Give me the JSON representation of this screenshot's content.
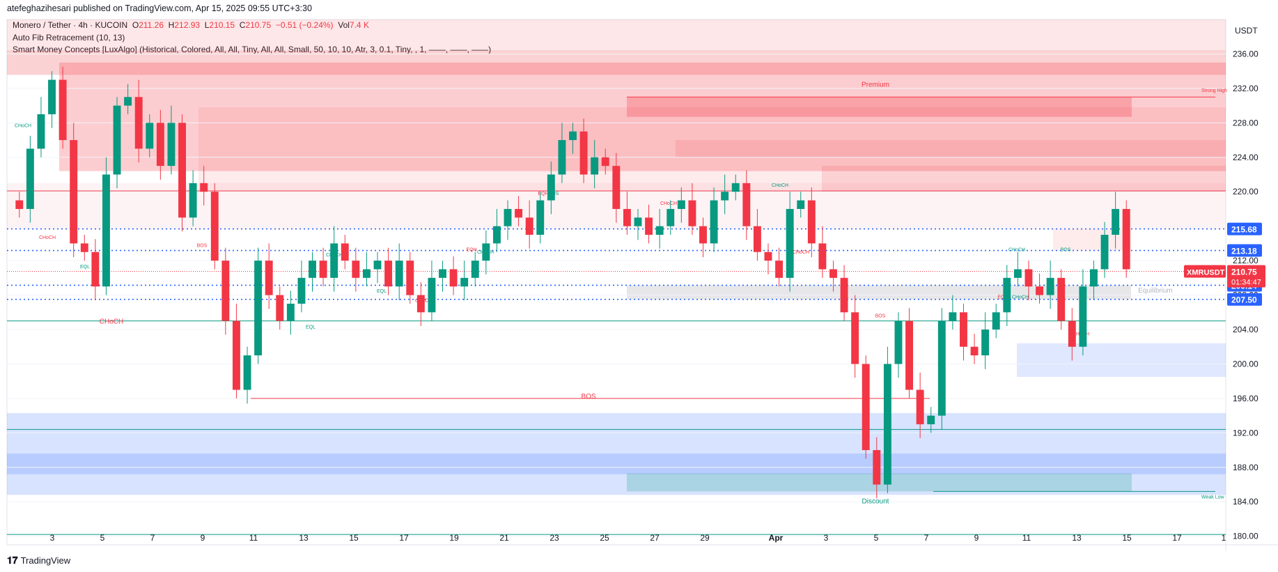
{
  "header": {
    "published": "atefeghazihesari published on TradingView.com, Apr 15, 2025 09:55 UTC+3:30",
    "symbol_line": "Monero / Tether · 4h · KUCOIN",
    "o_label": "O",
    "o_value": "211.26",
    "h_label": "H",
    "h_value": "212.93",
    "l_label": "L",
    "l_value": "210.15",
    "c_label": "C",
    "c_value": "210.75",
    "change": "−0.51 (−0.24%)",
    "vol_label": "Vol",
    "vol_value": "7.4 K",
    "indicator1": "Auto Fib Retracement (10, 13)",
    "indicator2": "Smart Money Concepts [LuxAlgo] (Historical, Colored, All, All, Tiny, All, All, Small, 50, 10, 10, Atr, 3, 0.1, Tiny, , 1, ——, ——, ——)"
  },
  "footer": {
    "brand": "TradingView"
  },
  "colors": {
    "up": "#089981",
    "down": "#f23645",
    "premium": "#f23645",
    "discount": "#2962ff",
    "fib": "#2962ff"
  },
  "chart_data": {
    "type": "candlestick",
    "currency": "USDT",
    "ylim": [
      179,
      240
    ],
    "y_ticks": [
      180,
      184,
      188,
      192,
      196,
      200,
      204,
      208,
      212,
      216,
      220,
      224,
      228,
      232,
      236
    ],
    "y_tick_labels": [
      "180.00",
      "184.00",
      "188.00",
      "192.00",
      "196.00",
      "200.00",
      "204.00",
      "208.00",
      "212.00",
      "216.00",
      "220.00",
      "224.00",
      "228.00",
      "232.00",
      "236.00"
    ],
    "x_ticks": [
      "3",
      "5",
      "7",
      "9",
      "11",
      "13",
      "15",
      "17",
      "19",
      "21",
      "23",
      "25",
      "27",
      "29",
      "Apr",
      "3",
      "5",
      "7",
      "9",
      "11",
      "13",
      "15",
      "17",
      "1"
    ],
    "price_tags": [
      {
        "label": "215.68",
        "value": 215.68
      },
      {
        "label": "213.18",
        "value": 213.18
      },
      {
        "label": "209.14",
        "value": 209.14
      },
      {
        "label": "207.50",
        "value": 207.5
      }
    ],
    "last_price": {
      "symbol": "XMRUSDT",
      "value": 210.75,
      "label": "210.75",
      "countdown": "01:34:47"
    },
    "zone_labels": [
      "Premium",
      "Equilibrium",
      "Discount",
      "Strong High",
      "Weak Low"
    ],
    "structure_labels": [
      "CHoCH",
      "CHoCH",
      "EQL",
      "BOS",
      "CHoCH",
      "EQL",
      "CHoCH",
      "EQL",
      "CHoCH",
      "CHoCH",
      "EQH",
      "CHoCH",
      "EQH",
      "BOS",
      "CHoCH",
      "CHoCH",
      "CHoCH",
      "BOS",
      "EQH",
      "CHoCH",
      "BOS",
      "CHoCH",
      "BOS"
    ],
    "series": [
      {
        "name": "XMRUSDT",
        "close": [
          218,
          225,
          229,
          233,
          226,
          214,
          213,
          209,
          222,
          230,
          231,
          225,
          228,
          223,
          228,
          217,
          221,
          220,
          212,
          205,
          197,
          201,
          212,
          208,
          205,
          207,
          210,
          212,
          210,
          214,
          212,
          210,
          211,
          212,
          209,
          212,
          208,
          206,
          210,
          211,
          209,
          210,
          212,
          214,
          216,
          218,
          217,
          215,
          219,
          222,
          226,
          227,
          222,
          224,
          223,
          218,
          216,
          217,
          215,
          216,
          218,
          219,
          216,
          214,
          219,
          220,
          221,
          216,
          213,
          212,
          210,
          218,
          219,
          214,
          211,
          210,
          206,
          200,
          190,
          186,
          200,
          205,
          197,
          193,
          194,
          205,
          206,
          202,
          201,
          204,
          206,
          210,
          211,
          209,
          208,
          210,
          205,
          202,
          209,
          211,
          215,
          218,
          211
        ]
      }
    ]
  }
}
